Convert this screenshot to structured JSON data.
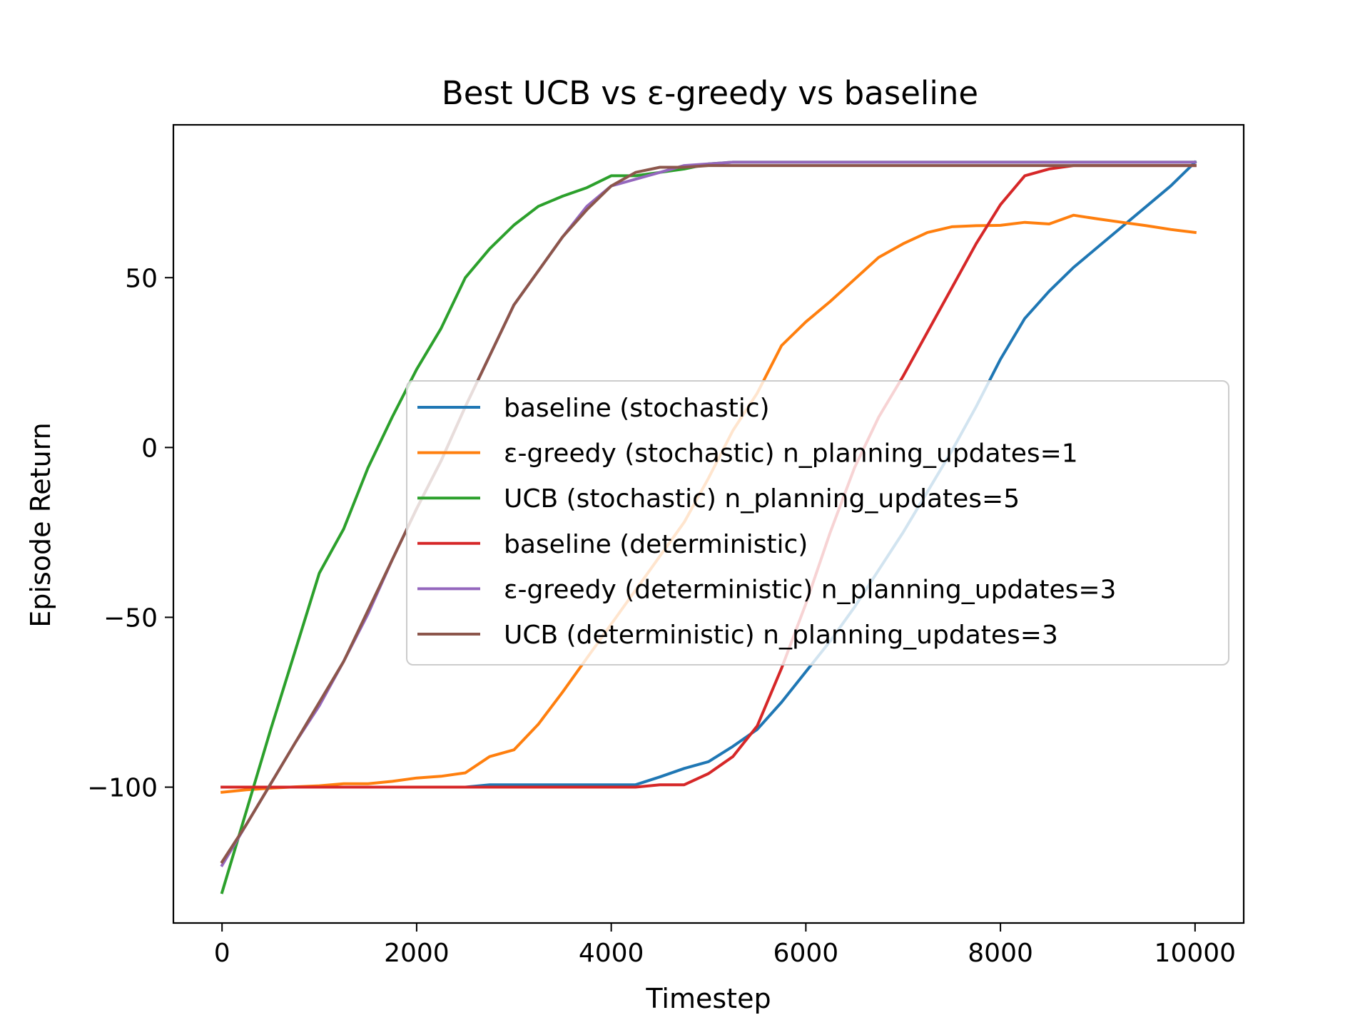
{
  "chart_data": {
    "type": "line",
    "title": "Best UCB vs ε-greedy vs baseline",
    "xlabel": "Timestep",
    "ylabel": "Episode Return",
    "xlim": [
      -500,
      10500
    ],
    "ylim": [
      -140,
      95
    ],
    "xticks": [
      0,
      2000,
      4000,
      6000,
      8000,
      10000
    ],
    "xtick_labels": [
      "0",
      "2000",
      "4000",
      "6000",
      "8000",
      "10000"
    ],
    "yticks": [
      -100,
      -50,
      0,
      50
    ],
    "ytick_labels": [
      "−100",
      "−50",
      "0",
      "50"
    ],
    "grid": false,
    "legend_position": "center-right",
    "series": [
      {
        "name": "baseline (stochastic)",
        "color": "#1f77b4",
        "x": [
          0,
          250,
          500,
          750,
          1000,
          1250,
          1500,
          1750,
          2000,
          2250,
          2500,
          2750,
          3000,
          3250,
          3500,
          3750,
          4000,
          4250,
          4500,
          4750,
          5000,
          5250,
          5500,
          5750,
          6000,
          6250,
          6500,
          6750,
          7000,
          7250,
          7500,
          7750,
          8000,
          8250,
          8500,
          8750,
          9000,
          9250,
          9500,
          9750,
          10000
        ],
        "y": [
          -100,
          -100,
          -100,
          -100,
          -100,
          -100,
          -100,
          -100,
          -100,
          -100,
          -100,
          -99.3,
          -99.3,
          -99.3,
          -99.3,
          -99.3,
          -99.3,
          -99.3,
          -97,
          -94.5,
          -92.5,
          -88,
          -83,
          -75,
          -66,
          -57,
          -47,
          -36,
          -25,
          -13,
          -1,
          12,
          26,
          38,
          46,
          53,
          59,
          65,
          71,
          77,
          84
        ]
      },
      {
        "name": "ε-greedy (stochastic) n_planning_updates=1",
        "color": "#ff7f0e",
        "x": [
          0,
          250,
          500,
          750,
          1000,
          1250,
          1500,
          1750,
          2000,
          2250,
          2500,
          2750,
          3000,
          3250,
          3500,
          3750,
          4000,
          4250,
          4500,
          4750,
          5000,
          5250,
          5500,
          5750,
          6000,
          6250,
          6500,
          6750,
          7000,
          7250,
          7500,
          7750,
          8000,
          8250,
          8500,
          8750,
          9000,
          9250,
          9500,
          9750,
          10000
        ],
        "y": [
          -101.5,
          -100.8,
          -100.3,
          -99.9,
          -99.6,
          -99,
          -99,
          -98.3,
          -97.3,
          -96.8,
          -95.8,
          -91,
          -89,
          -81.5,
          -72,
          -62,
          -52,
          -42,
          -32,
          -22,
          -9,
          5,
          16,
          30,
          37,
          43,
          49.5,
          56,
          60,
          63.3,
          65,
          65.3,
          65.4,
          66.3,
          65.8,
          68.4,
          67.3,
          66.3,
          65.3,
          64.2,
          63.3
        ]
      },
      {
        "name": "UCB (stochastic) n_planning_updates=5",
        "color": "#2ca02c",
        "x": [
          0,
          250,
          500,
          750,
          1000,
          1250,
          1500,
          1750,
          2000,
          2250,
          2500,
          2750,
          3000,
          3250,
          3500,
          3750,
          4000,
          4250,
          4500,
          4750,
          5000,
          5250,
          5500,
          5750,
          6000,
          6250,
          6500,
          6750,
          7000,
          7250,
          7500,
          7750,
          8000,
          8250,
          8500,
          8750,
          9000,
          9250,
          9500,
          9750,
          10000
        ],
        "y": [
          -131,
          -107,
          -83,
          -60,
          -37,
          -24,
          -6,
          9,
          23,
          35,
          50,
          58.5,
          65.5,
          71,
          74,
          76.5,
          80,
          80,
          81,
          82,
          83.5,
          84,
          84,
          84,
          84,
          84,
          84,
          84,
          84,
          84,
          84,
          84,
          84,
          84,
          84,
          84,
          84,
          84,
          84,
          84,
          84
        ]
      },
      {
        "name": "baseline (deterministic)",
        "color": "#d62728",
        "x": [
          0,
          250,
          500,
          750,
          1000,
          1250,
          1500,
          1750,
          2000,
          2250,
          2500,
          2750,
          3000,
          3250,
          3500,
          3750,
          4000,
          4250,
          4500,
          4750,
          5000,
          5250,
          5500,
          5750,
          6000,
          6250,
          6500,
          6750,
          7000,
          7250,
          7500,
          7750,
          8000,
          8250,
          8500,
          8750,
          9000,
          9250,
          9500,
          9750,
          10000
        ],
        "y": [
          -100,
          -100,
          -100,
          -100,
          -100,
          -100,
          -100,
          -100,
          -100,
          -100,
          -100,
          -100,
          -100,
          -100,
          -100,
          -100,
          -100,
          -100,
          -99.3,
          -99.3,
          -96,
          -91,
          -82,
          -65,
          -46,
          -25,
          -6,
          9,
          21,
          34,
          47,
          60,
          71.5,
          80,
          82,
          83,
          83,
          83,
          83,
          83,
          83
        ]
      },
      {
        "name": "ε-greedy (deterministic) n_planning_updates=3",
        "color": "#9467bd",
        "x": [
          0,
          250,
          500,
          750,
          1000,
          1250,
          1500,
          1750,
          2000,
          2250,
          2500,
          2750,
          3000,
          3250,
          3500,
          3750,
          4000,
          4250,
          4500,
          4750,
          5000,
          5250,
          5500,
          5750,
          6000,
          6250,
          6500,
          6750,
          7000,
          7250,
          7500,
          7750,
          8000,
          8250,
          8500,
          8750,
          9000,
          9250,
          9500,
          9750,
          10000
        ],
        "y": [
          -123,
          -111,
          -99,
          -87,
          -76,
          -63,
          -49,
          -33,
          -18,
          -4,
          12,
          27,
          42,
          52,
          62,
          71,
          77,
          79,
          81,
          83,
          83.5,
          84,
          84,
          84,
          84,
          84,
          84,
          84,
          84,
          84,
          84,
          84,
          84,
          84,
          84,
          84,
          84,
          84,
          84,
          84,
          84
        ]
      },
      {
        "name": "UCB (deterministic) n_planning_updates=3",
        "color": "#8c564b",
        "x": [
          0,
          250,
          500,
          750,
          1000,
          1250,
          1500,
          1750,
          2000,
          2250,
          2500,
          2750,
          3000,
          3250,
          3500,
          3750,
          4000,
          4250,
          4500,
          4750,
          5000,
          5250,
          5500,
          5750,
          6000,
          6250,
          6500,
          6750,
          7000,
          7250,
          7500,
          7750,
          8000,
          8250,
          8500,
          8750,
          9000,
          9250,
          9500,
          9750,
          10000
        ],
        "y": [
          -122,
          -111,
          -99,
          -87,
          -75,
          -63,
          -48,
          -33,
          -18,
          -4,
          12,
          27,
          42,
          52,
          62,
          70,
          77,
          81,
          82.5,
          82.5,
          83,
          83,
          83,
          83,
          83,
          83,
          83,
          83,
          83,
          83,
          83,
          83,
          83,
          83,
          83,
          83,
          83,
          83,
          83,
          83,
          83
        ]
      }
    ]
  }
}
